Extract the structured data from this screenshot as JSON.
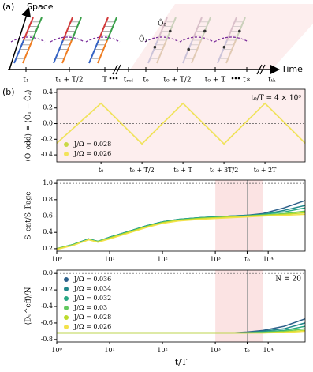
{
  "diagram": {
    "panel_label": "(a)",
    "space_label": "Space",
    "time_label": "Time",
    "time_ticks": [
      "t₁",
      "t₁ + T/2",
      "T",
      "tᵣₑₗ",
      "t₀",
      "t₀ + T/2",
      "t₀ + T",
      "t∗",
      "tₜₕ"
    ],
    "operators": [
      "Ô₁",
      "Ô₂"
    ]
  },
  "panel_label_b": "(b)",
  "chart_data": [
    {
      "type": "line",
      "ylabel": "⟨Ô_odd⟩ = ⟨Ô₁ − Ô₂⟩",
      "annotation": "t₀/T = 4 × 10³",
      "x": [
        -0.54,
        0,
        0.5,
        1,
        1.5,
        2,
        2.49
      ],
      "xlim": [
        -0.54,
        2.49
      ],
      "xticks": [
        {
          "value": 0,
          "label": "t₀"
        },
        {
          "value": 0.5,
          "label": "t₀ + T/2"
        },
        {
          "value": 1,
          "label": "t₀ + T"
        },
        {
          "value": 1.5,
          "label": "t₀ + 3T/2"
        },
        {
          "value": 2,
          "label": "t₀ + 2T"
        }
      ],
      "ylim": [
        -0.49,
        0.44
      ],
      "yticks": [
        -0.4,
        -0.2,
        {
          "value": 0,
          "label": "0.0"
        },
        0.2,
        0.4
      ],
      "hline": 0,
      "background": "#fdeeee",
      "legend": "lower left",
      "series": [
        {
          "name": "J/Ω = 0.028",
          "color": "#c9d846",
          "values": [
            -0.25,
            0.26,
            -0.26,
            0.26,
            -0.26,
            0.26,
            -0.25
          ]
        },
        {
          "name": "J/Ω = 0.026",
          "color": "#f3e35a",
          "values": [
            -0.25,
            0.26,
            -0.26,
            0.26,
            -0.26,
            0.26,
            -0.25
          ]
        }
      ]
    },
    {
      "type": "line",
      "ylabel": "S_ent/S_Page",
      "xscale": "log",
      "x": [
        1,
        2,
        4,
        6,
        10,
        20,
        50,
        100,
        200,
        500,
        1000,
        2000,
        4000,
        8000,
        20000,
        50000
      ],
      "xlim": [
        1,
        50000
      ],
      "xticks": [
        {
          "value": 1,
          "label": "10⁰"
        },
        {
          "value": 10,
          "label": "10¹"
        },
        {
          "value": 100,
          "label": "10²"
        },
        {
          "value": 1000,
          "label": "10³"
        },
        {
          "value": 4000,
          "label": "t₀"
        },
        {
          "value": 10000,
          "label": "10⁴"
        }
      ],
      "ylim": [
        0.17,
        1.04
      ],
      "yticks": [
        0.2,
        0.4,
        0.6,
        0.8,
        {
          "value": 1,
          "label": "1.0"
        }
      ],
      "hline": 1,
      "shade": [
        1000,
        8000
      ],
      "vline": 4000,
      "series": [
        {
          "color": "#2c5f8a",
          "values": [
            0.2,
            0.25,
            0.32,
            0.29,
            0.34,
            0.4,
            0.48,
            0.53,
            0.56,
            0.58,
            0.59,
            0.6,
            0.61,
            0.63,
            0.7,
            0.79
          ]
        },
        {
          "color": "#21878b",
          "values": [
            0.2,
            0.25,
            0.32,
            0.29,
            0.34,
            0.4,
            0.48,
            0.53,
            0.56,
            0.58,
            0.59,
            0.6,
            0.61,
            0.62,
            0.67,
            0.73
          ]
        },
        {
          "color": "#29a884",
          "values": [
            0.2,
            0.25,
            0.32,
            0.29,
            0.34,
            0.4,
            0.48,
            0.53,
            0.56,
            0.58,
            0.59,
            0.6,
            0.6,
            0.62,
            0.65,
            0.7
          ]
        },
        {
          "color": "#62c95f",
          "values": [
            0.2,
            0.25,
            0.31,
            0.29,
            0.33,
            0.39,
            0.47,
            0.52,
            0.55,
            0.57,
            0.58,
            0.59,
            0.6,
            0.61,
            0.63,
            0.66
          ]
        },
        {
          "color": "#bcdb2c",
          "values": [
            0.2,
            0.24,
            0.31,
            0.28,
            0.33,
            0.39,
            0.47,
            0.52,
            0.55,
            0.57,
            0.58,
            0.59,
            0.6,
            0.61,
            0.62,
            0.64
          ]
        },
        {
          "color": "#f3e24a",
          "values": [
            0.19,
            0.24,
            0.31,
            0.28,
            0.32,
            0.38,
            0.46,
            0.51,
            0.54,
            0.56,
            0.57,
            0.58,
            0.59,
            0.6,
            0.61,
            0.62
          ]
        }
      ]
    },
    {
      "type": "line",
      "ylabel": "⟨D₀^eff⟩/N",
      "xlabel": "t/T",
      "annotation": "N = 20",
      "xscale": "log",
      "x": [
        1,
        10,
        100,
        1000,
        2000,
        4000,
        8000,
        20000,
        50000
      ],
      "xlim": [
        1,
        50000
      ],
      "xticks": [
        {
          "value": 1,
          "label": "10⁰"
        },
        {
          "value": 10,
          "label": "10¹"
        },
        {
          "value": 100,
          "label": "10²"
        },
        {
          "value": 1000,
          "label": "10³"
        },
        {
          "value": 4000,
          "label": "t₀"
        },
        {
          "value": 10000,
          "label": "10⁴"
        }
      ],
      "ylim": [
        -0.83,
        0.04
      ],
      "yticks": [
        -0.8,
        -0.6,
        -0.4,
        -0.2,
        {
          "value": 0,
          "label": "0.0"
        }
      ],
      "hline": 0,
      "shade": [
        1000,
        8000
      ],
      "vline": 4000,
      "legend": "upper left",
      "series": [
        {
          "name": "J/Ω = 0.036",
          "color": "#2c5f8a",
          "values": [
            -0.72,
            -0.72,
            -0.72,
            -0.72,
            -0.72,
            -0.71,
            -0.69,
            -0.64,
            -0.55
          ]
        },
        {
          "name": "J/Ω = 0.034",
          "color": "#21878b",
          "values": [
            -0.72,
            -0.72,
            -0.72,
            -0.72,
            -0.72,
            -0.715,
            -0.7,
            -0.67,
            -0.6
          ]
        },
        {
          "name": "J/Ω = 0.032",
          "color": "#29a884",
          "values": [
            -0.72,
            -0.72,
            -0.72,
            -0.72,
            -0.72,
            -0.72,
            -0.71,
            -0.69,
            -0.64
          ]
        },
        {
          "name": "J/Ω = 0.03",
          "color": "#62c95f",
          "values": [
            -0.72,
            -0.72,
            -0.72,
            -0.72,
            -0.72,
            -0.72,
            -0.715,
            -0.7,
            -0.67
          ]
        },
        {
          "name": "J/Ω = 0.028",
          "color": "#bcdb2c",
          "values": [
            -0.72,
            -0.72,
            -0.72,
            -0.72,
            -0.72,
            -0.72,
            -0.72,
            -0.71,
            -0.69
          ]
        },
        {
          "name": "J/Ω = 0.026",
          "color": "#f3e24a",
          "values": [
            -0.72,
            -0.72,
            -0.72,
            -0.72,
            -0.72,
            -0.72,
            -0.72,
            -0.715,
            -0.7
          ]
        }
      ]
    }
  ]
}
